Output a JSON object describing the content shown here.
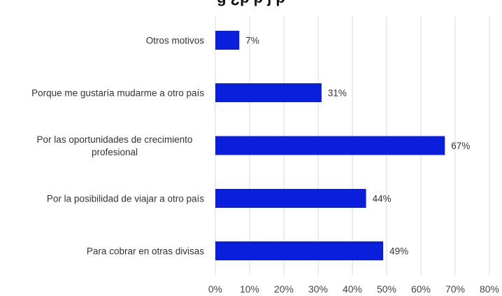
{
  "chart_data": {
    "type": "bar",
    "orientation": "horizontal",
    "title_fragment": "g  ¿p   p              j  p           ",
    "categories": [
      "Otros motivos",
      "Porque me gustaría mudarme a otro país",
      "Por las oportunidades de crecimiento profesional",
      "Por la posibilidad de viajar a otro país",
      "Para cobrar en otras divisas"
    ],
    "category_lines": [
      [
        "Otros motivos"
      ],
      [
        "Porque me gustaría mudarme a otro país"
      ],
      [
        "Por las oportunidades de crecimiento",
        "profesional"
      ],
      [
        "Por la posibilidad de viajar a otro país"
      ],
      [
        "Para cobrar en otras divisas"
      ]
    ],
    "values": [
      7,
      31,
      67,
      44,
      49
    ],
    "value_labels": [
      "7%",
      "31%",
      "67%",
      "44%",
      "49%"
    ],
    "xlim": [
      0,
      80
    ],
    "xticks": [
      "0%",
      "10%",
      "20%",
      "30%",
      "40%",
      "50%",
      "60%",
      "70%",
      "80%"
    ],
    "grid": true,
    "bar_color": "#0a1fdc"
  }
}
